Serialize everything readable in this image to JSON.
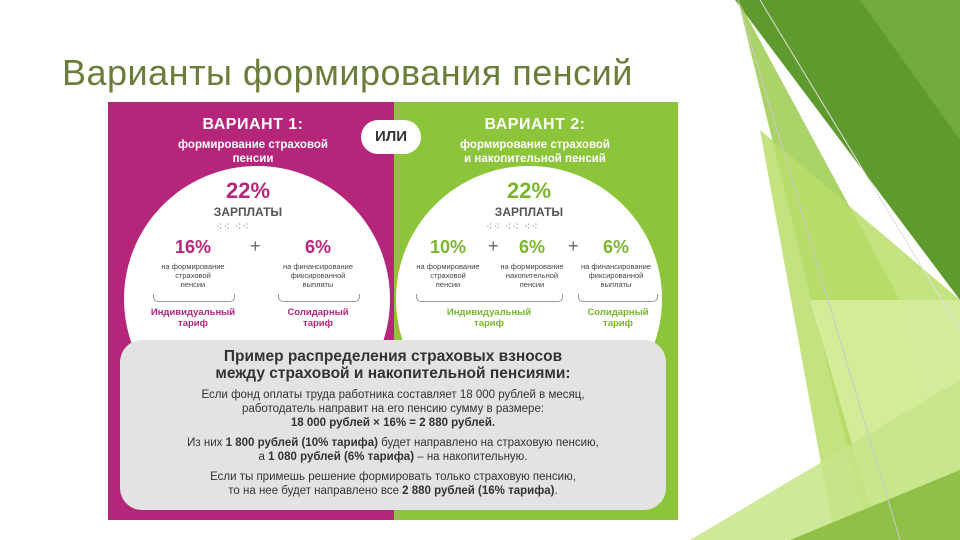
{
  "slide": {
    "title": "Варианты формирования пенсий"
  },
  "theme": {
    "magenta": "#b5267a",
    "green": "#8cc43a",
    "title_color": "#6b7d3a",
    "panel_grey": "#e3e3e3"
  },
  "variant1": {
    "heading": "ВАРИАНТ 1:",
    "desc_line1": "формирование страховой",
    "desc_line2": "пенсии",
    "total_pct": "22%",
    "total_label": "ЗАРПЛАТЫ",
    "plus": "+",
    "part1": {
      "pct": "16%",
      "line1": "на формирование",
      "line2": "страховой",
      "line3": "пенсии"
    },
    "part2": {
      "pct": "6%",
      "line1": "на финансирование",
      "line2": "фиксированной",
      "line3": "выплаты"
    },
    "tariff1_line1": "Индивидуальный",
    "tariff1_line2": "тариф",
    "tariff2_line1": "Солидарный",
    "tariff2_line2": "тариф"
  },
  "or_label": "ИЛИ",
  "variant2": {
    "heading": "ВАРИАНТ 2:",
    "desc_line1": "формирование страховой",
    "desc_line2": "и накопительной пенсий",
    "total_pct": "22%",
    "total_label": "ЗАРПЛАТЫ",
    "plus": "+",
    "part1": {
      "pct": "10%",
      "line1": "на формирование",
      "line2": "страховой",
      "line3": "пенсии"
    },
    "part2": {
      "pct": "6%",
      "line1": "на формирование",
      "line2": "накопительной",
      "line3": "пенсии"
    },
    "part3": {
      "pct": "6%",
      "line1": "на финансирование",
      "line2": "фиксированной",
      "line3": "выплаты"
    },
    "tariff1_line1": "Индивидуальный",
    "tariff1_line2": "тариф",
    "tariff2_line1": "Солидарный",
    "tariff2_line2": "тариф"
  },
  "example": {
    "title_line1": "Пример распределения страховых взносов",
    "title_line2": "между страховой и накопительной пенсиями:",
    "l1": "Если фонд оплаты труда работника составляет 18 000 рублей в месяц,",
    "l2": "работодатель направит на его пенсию сумму в размере:",
    "l3": "18 000 рублей × 16% = 2 880 рублей.",
    "l4a": "Из них ",
    "l4b": "1 800 рублей (10% тарифа)",
    "l4c": " будет направлено на страховую пенсию,",
    "l5a": "а ",
    "l5b": "1 080 рублей (6% тарифа)",
    "l5c": " – на накопительную.",
    "l6": "Если ты примешь решение формировать только страховую пенсию,",
    "l7a": "то на нее будет направлено все ",
    "l7b": "2 880 рублей (16% тарифа)",
    "l7c": "."
  }
}
